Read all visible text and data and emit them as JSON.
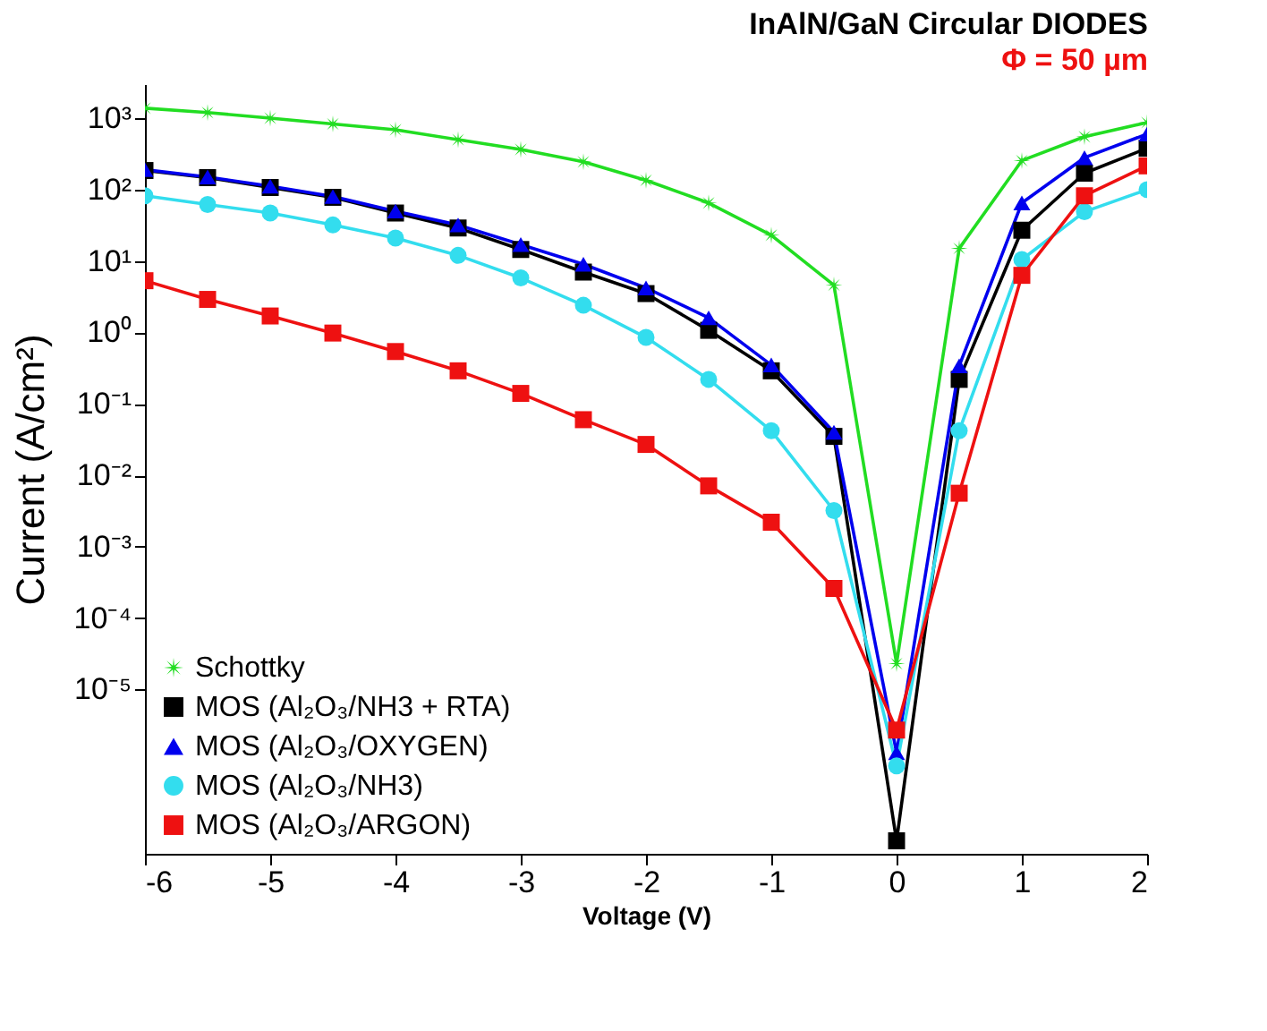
{
  "chart_data": {
    "type": "line",
    "title": "InAlN/GaN Circular DIODES",
    "subtitle": "Φ = 50 µm",
    "xlabel": "Voltage (V)",
    "ylabel": "Current (A/cm²)",
    "x": [
      -6,
      -5.5,
      -5,
      -4.5,
      -4,
      -3.5,
      -3,
      -2.5,
      -2,
      -1.5,
      -1,
      -0.5,
      0,
      0.5,
      1,
      1.5,
      2
    ],
    "series": [
      {
        "name": "Schottky",
        "color": "#22dd22",
        "marker": "star",
        "values": [
          1380,
          1200,
          1000,
          830,
          690,
          500,
          365,
          245,
          135,
          65,
          23,
          4.6,
          2.3e-05,
          15,
          255,
          550,
          870
        ]
      },
      {
        "name": "MOS (Al₂O₃/NH3 + RTA)",
        "color": "#000000",
        "marker": "square",
        "values": [
          185,
          147,
          107,
          78,
          47,
          29,
          14.5,
          7,
          3.5,
          1.07,
          0.29,
          0.035,
          7.6e-08,
          0.22,
          27,
          170,
          380
        ]
      },
      {
        "name": "MOS (Al₂O₃/OXYGEN)",
        "color": "#0000ee",
        "marker": "triangle",
        "values": [
          190,
          150,
          112,
          80,
          50,
          32,
          17,
          9,
          4.2,
          1.6,
          0.35,
          0.04,
          1.3e-06,
          0.34,
          65,
          280,
          600
        ]
      },
      {
        "name": "MOS (Al₂O₃/NH3)",
        "color": "#33ddee",
        "marker": "circle",
        "values": [
          82,
          62,
          47,
          32,
          21,
          12,
          5.8,
          2.4,
          0.85,
          0.22,
          0.042,
          0.0032,
          8.5e-07,
          0.042,
          10.5,
          49,
          100
        ]
      },
      {
        "name": "MOS (Al₂O₃/ARGON)",
        "color": "#ee1111",
        "marker": "square",
        "values": [
          5.3,
          2.9,
          1.7,
          0.98,
          0.54,
          0.29,
          0.14,
          0.06,
          0.027,
          0.0071,
          0.0022,
          0.00026,
          2.7e-06,
          0.0056,
          6.3,
          82,
          215
        ]
      }
    ],
    "xlim": [
      -6,
      2
    ],
    "xticks": [
      -6,
      -5,
      -4,
      -3,
      -2,
      -1,
      0,
      1,
      2
    ],
    "ylim": [
      5e-08,
      3000
    ],
    "log": true,
    "yticks": [
      {
        "value": 1e-05,
        "label": "10⁻⁵"
      },
      {
        "value": 0.0001,
        "label": "10⁻⁴"
      },
      {
        "value": 0.001,
        "label": "10⁻³"
      },
      {
        "value": 0.01,
        "label": "10⁻²"
      },
      {
        "value": 0.1,
        "label": "10⁻¹"
      },
      {
        "value": 1,
        "label": "10⁰"
      },
      {
        "value": 10,
        "label": "10¹"
      },
      {
        "value": 100,
        "label": "10²"
      },
      {
        "value": 1000,
        "label": "10³"
      }
    ],
    "grid": false,
    "legend": "bottom left",
    "line_style": "solid"
  }
}
